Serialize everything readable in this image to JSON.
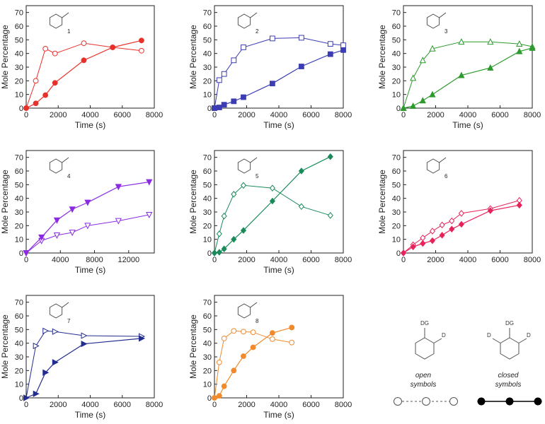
{
  "colors": {
    "1": "#e8312a",
    "2": "#3c3cb4",
    "3": "#2e9a2e",
    "4": "#8a2be2",
    "5": "#1a8a5a",
    "6": "#e8235a",
    "7": "#232d8e",
    "8": "#f08a2c"
  },
  "legend": {
    "dg_label": "DG",
    "d_label": "D",
    "open_label_1": "open",
    "open_label_2": "symbols",
    "closed_label_1": "closed",
    "closed_label_2": "symbols"
  },
  "chart_data": [
    {
      "type": "line",
      "panel": 1,
      "compound_label": "1",
      "xlabel": "Time (s)",
      "ylabel": "Mole Percentage",
      "xlim": [
        0,
        8000
      ],
      "ylim": [
        0,
        75
      ],
      "xticks": [
        0,
        2000,
        4000,
        6000,
        8000
      ],
      "yticks": [
        0,
        10,
        20,
        30,
        40,
        50,
        60,
        70
      ],
      "series": [
        {
          "symbol": "open-circle",
          "x": [
            0,
            600,
            1200,
            1800,
            3600,
            5400,
            7200
          ],
          "y": [
            0,
            20,
            43.5,
            40,
            47.5,
            44.5,
            42
          ]
        },
        {
          "symbol": "filled-circle",
          "x": [
            0,
            600,
            1200,
            1800,
            3600,
            5400,
            7200
          ],
          "y": [
            0,
            3.5,
            9.5,
            18.5,
            35,
            44.5,
            49.5
          ]
        }
      ]
    },
    {
      "type": "line",
      "panel": 2,
      "compound_label": "2",
      "xlabel": "Time (s)",
      "ylabel": "Mole Percentage",
      "xlim": [
        0,
        8000
      ],
      "ylim": [
        0,
        75
      ],
      "xticks": [
        0,
        2000,
        4000,
        6000,
        8000
      ],
      "yticks": [
        0,
        10,
        20,
        30,
        40,
        50,
        60,
        70
      ],
      "series": [
        {
          "symbol": "open-square",
          "x": [
            0,
            300,
            600,
            1200,
            1800,
            3600,
            5400,
            7200,
            8000
          ],
          "y": [
            0,
            20.5,
            25,
            35,
            44.5,
            51,
            51.5,
            47,
            46
          ]
        },
        {
          "symbol": "filled-square",
          "x": [
            0,
            300,
            600,
            1200,
            1800,
            3600,
            5400,
            7200,
            8000
          ],
          "y": [
            0,
            0.5,
            2.5,
            5,
            8,
            18,
            30.5,
            39.5,
            42.5
          ]
        }
      ]
    },
    {
      "type": "line",
      "panel": 3,
      "compound_label": "3",
      "xlabel": "Time (s)",
      "ylabel": "Mole Percentage",
      "xlim": [
        0,
        8000
      ],
      "ylim": [
        0,
        75
      ],
      "xticks": [
        0,
        2000,
        4000,
        6000,
        8000
      ],
      "yticks": [
        0,
        10,
        20,
        30,
        40,
        50,
        60,
        70
      ],
      "series": [
        {
          "symbol": "open-triangle",
          "x": [
            0,
            600,
            1200,
            1800,
            3600,
            5400,
            7200,
            8000
          ],
          "y": [
            0,
            22,
            35,
            43.5,
            48.5,
            48.5,
            47,
            45
          ]
        },
        {
          "symbol": "filled-triangle",
          "x": [
            0,
            600,
            1200,
            1800,
            3600,
            5400,
            7200,
            8000
          ],
          "y": [
            0,
            1.5,
            5.5,
            10,
            24,
            29.5,
            41.5,
            44
          ]
        }
      ]
    },
    {
      "type": "line",
      "panel": 4,
      "compound_label": "4",
      "xlabel": "Time (s)",
      "ylabel": "Mole Percentage",
      "xlim": [
        0,
        15000
      ],
      "ylim": [
        0,
        75
      ],
      "xticks": [
        0,
        4000,
        8000,
        12000
      ],
      "yticks": [
        0,
        10,
        20,
        30,
        40,
        50,
        60,
        70
      ],
      "series": [
        {
          "symbol": "open-down-triangle",
          "x": [
            0,
            1800,
            3600,
            5400,
            7200,
            10800,
            14400
          ],
          "y": [
            0,
            9,
            13,
            15,
            20,
            23.5,
            28
          ]
        },
        {
          "symbol": "filled-down-triangle",
          "x": [
            0,
            1800,
            3600,
            5400,
            7200,
            10800,
            14400
          ],
          "y": [
            0,
            11.5,
            24,
            32,
            37,
            48.5,
            52
          ]
        }
      ]
    },
    {
      "type": "line",
      "panel": 5,
      "compound_label": "5",
      "xlabel": "Time (s)",
      "ylabel": "Mole Percentage",
      "xlim": [
        0,
        8000
      ],
      "ylim": [
        0,
        75
      ],
      "xticks": [
        0,
        2000,
        4000,
        6000,
        8000
      ],
      "yticks": [
        0,
        10,
        20,
        30,
        40,
        50,
        60,
        70
      ],
      "series": [
        {
          "symbol": "open-diamond",
          "x": [
            0,
            300,
            600,
            1200,
            1800,
            3600,
            5400,
            7200
          ],
          "y": [
            0,
            14,
            27,
            43,
            49.5,
            47.5,
            34,
            27.5
          ]
        },
        {
          "symbol": "filled-diamond",
          "x": [
            0,
            300,
            600,
            1200,
            1800,
            3600,
            5400,
            7200
          ],
          "y": [
            0,
            0.5,
            3,
            10,
            16.5,
            38,
            60,
            70.5
          ]
        }
      ]
    },
    {
      "type": "line",
      "panel": 6,
      "compound_label": "6",
      "xlabel": "",
      "ylabel": "Mole Percentage",
      "xlim": [
        0,
        8000
      ],
      "ylim": [
        0,
        75
      ],
      "xticks": [
        0,
        2000,
        4000,
        6000,
        8000
      ],
      "yticks": [
        0,
        10,
        20,
        30,
        40,
        50,
        60,
        70
      ],
      "series": [
        {
          "symbol": "open-diamond",
          "x": [
            0,
            600,
            1200,
            1800,
            2400,
            3000,
            3600,
            5400,
            7200
          ],
          "y": [
            0,
            6,
            11,
            16,
            20.5,
            23.5,
            29,
            32.5,
            38.5
          ]
        },
        {
          "symbol": "filled-diamond",
          "x": [
            0,
            600,
            1200,
            1800,
            2400,
            3000,
            3600,
            5400,
            7200
          ],
          "y": [
            0,
            4.5,
            7,
            9,
            13,
            17.5,
            21,
            31,
            35
          ]
        }
      ]
    },
    {
      "type": "line",
      "panel": 7,
      "compound_label": "7",
      "xlabel": "Time (s)",
      "ylabel": "Mole Percentage",
      "xlim": [
        0,
        8000
      ],
      "ylim": [
        0,
        75
      ],
      "xticks": [
        0,
        2000,
        4000,
        6000,
        8000
      ],
      "yticks": [
        0,
        10,
        20,
        30,
        40,
        50,
        60,
        70
      ],
      "series": [
        {
          "symbol": "open-right-triangle",
          "x": [
            0,
            600,
            1200,
            1800,
            3600,
            7200
          ],
          "y": [
            0,
            38,
            49,
            48.5,
            45.5,
            45
          ]
        },
        {
          "symbol": "filled-right-triangle",
          "x": [
            0,
            600,
            1200,
            1800,
            3600,
            7200
          ],
          "y": [
            0,
            3,
            18.5,
            26,
            39.5,
            43.5
          ]
        }
      ]
    },
    {
      "type": "line",
      "panel": 8,
      "compound_label": "8",
      "xlabel": "Time (s)",
      "ylabel": "Mole Percentage",
      "xlim": [
        0,
        8000
      ],
      "ylim": [
        0,
        75
      ],
      "xticks": [
        0,
        2000,
        4000,
        6000,
        8000
      ],
      "yticks": [
        0,
        10,
        20,
        30,
        40,
        50,
        60,
        70
      ],
      "series": [
        {
          "symbol": "open-circle",
          "x": [
            0,
            300,
            600,
            1200,
            1800,
            2400,
            3600,
            4800
          ],
          "y": [
            0,
            26,
            43.5,
            49,
            48.5,
            48,
            43,
            40.5
          ]
        },
        {
          "symbol": "filled-circle",
          "x": [
            0,
            300,
            600,
            1200,
            1800,
            2400,
            3600,
            4800
          ],
          "y": [
            0,
            1.5,
            8.5,
            20,
            30.5,
            37,
            47.5,
            51.5
          ]
        }
      ]
    }
  ]
}
